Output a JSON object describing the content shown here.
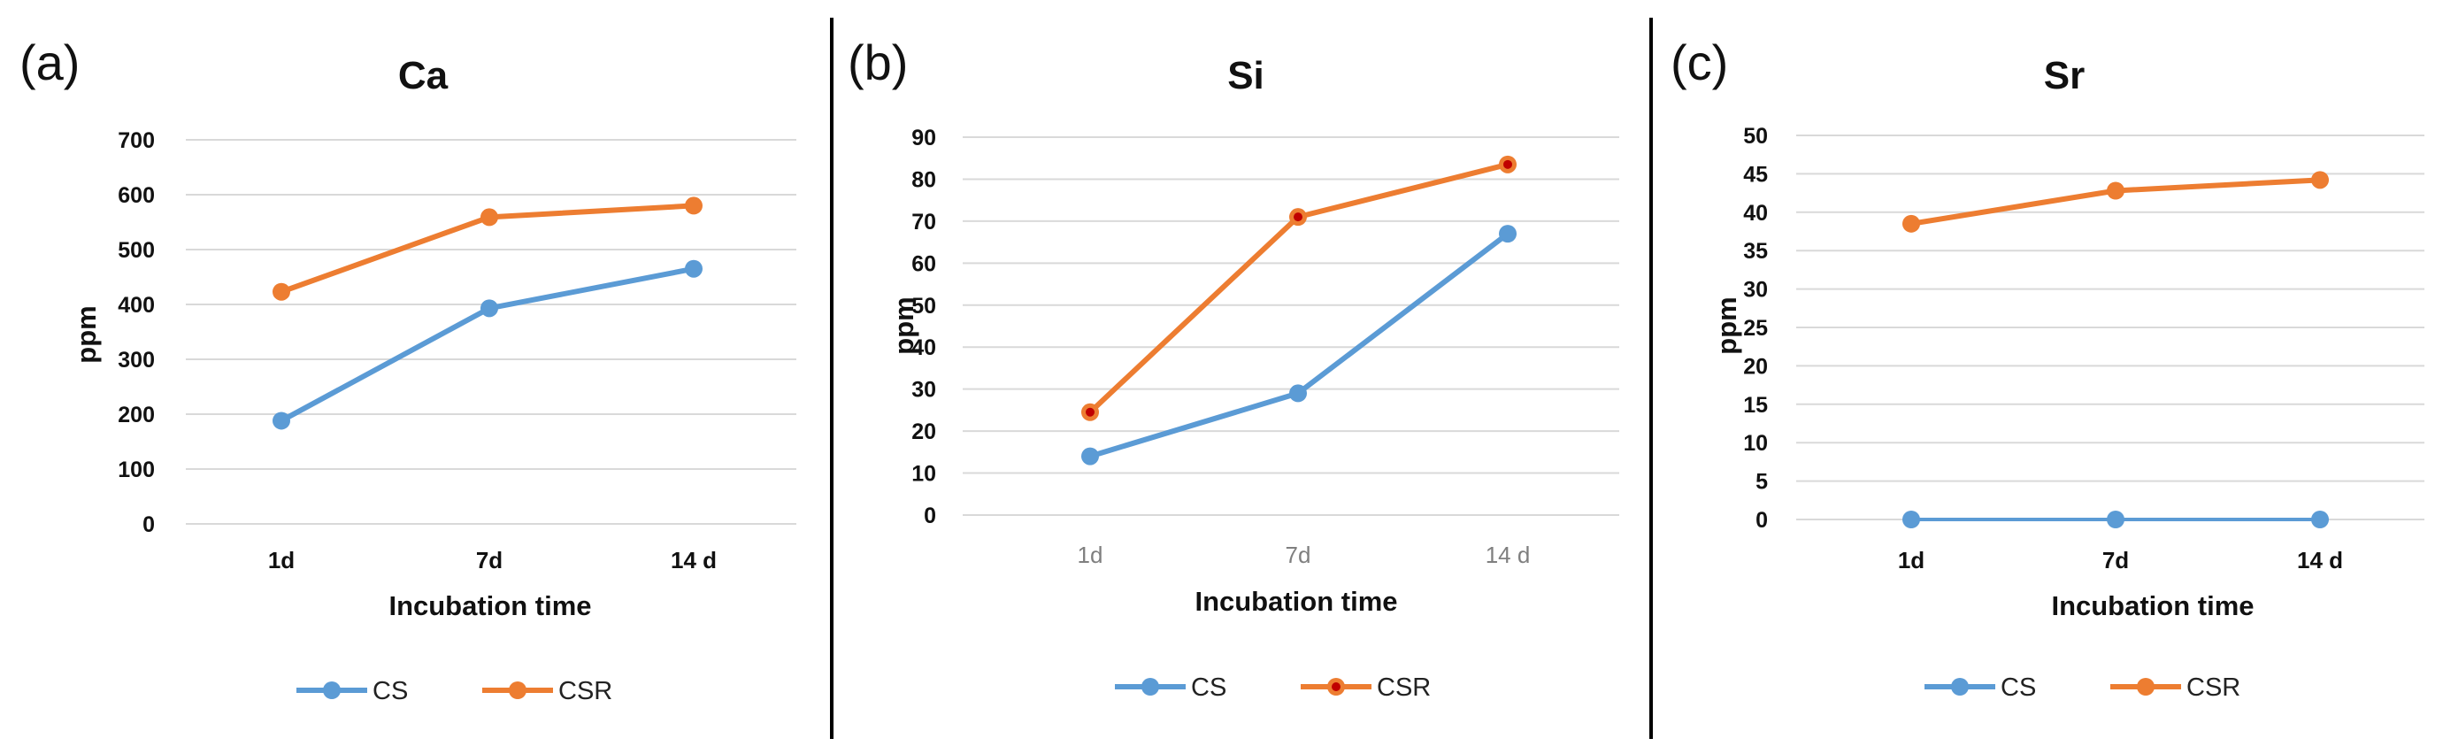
{
  "colors": {
    "cs": "#5b9bd5",
    "csr": "#ed7d31",
    "csr_marker_core": "#c00000",
    "grid": "#d9d9d9",
    "divider": "#000000"
  },
  "chart_data": [
    {
      "type": "line",
      "panel_label": "(a)",
      "title": "Ca",
      "xlabel": "Incubation time",
      "ylabel": "ppm",
      "categories": [
        "1d",
        "7d",
        "14 d"
      ],
      "ylim": [
        0,
        700
      ],
      "yticks": [
        0,
        100,
        200,
        300,
        400,
        500,
        600,
        700
      ],
      "grid": true,
      "legend_position": "bottom",
      "series": [
        {
          "name": "CS",
          "values": [
            188,
            393,
            465
          ]
        },
        {
          "name": "CSR",
          "values": [
            423,
            559,
            580
          ]
        }
      ]
    },
    {
      "type": "line",
      "panel_label": "(b)",
      "title": "Si",
      "xlabel": "Incubation time",
      "ylabel": "ppm",
      "categories": [
        "1d",
        "7d",
        "14 d"
      ],
      "ylim": [
        0,
        90
      ],
      "yticks": [
        0,
        10,
        20,
        30,
        40,
        50,
        60,
        70,
        80,
        90
      ],
      "grid": true,
      "legend_position": "bottom",
      "series": [
        {
          "name": "CS",
          "values": [
            14,
            29,
            67
          ]
        },
        {
          "name": "CSR",
          "values": [
            24.5,
            71,
            83.5
          ]
        }
      ]
    },
    {
      "type": "line",
      "panel_label": "(c)",
      "title": "Sr",
      "xlabel": "Incubation time",
      "ylabel": "ppm",
      "categories": [
        "1d",
        "7d",
        "14 d"
      ],
      "ylim": [
        0,
        50
      ],
      "yticks": [
        0,
        5,
        10,
        15,
        20,
        25,
        30,
        35,
        40,
        45,
        50
      ],
      "grid": true,
      "legend_position": "bottom",
      "series": [
        {
          "name": "CS",
          "values": [
            0,
            0,
            0
          ]
        },
        {
          "name": "CSR",
          "values": [
            38.5,
            42.8,
            44.2
          ]
        }
      ]
    }
  ]
}
